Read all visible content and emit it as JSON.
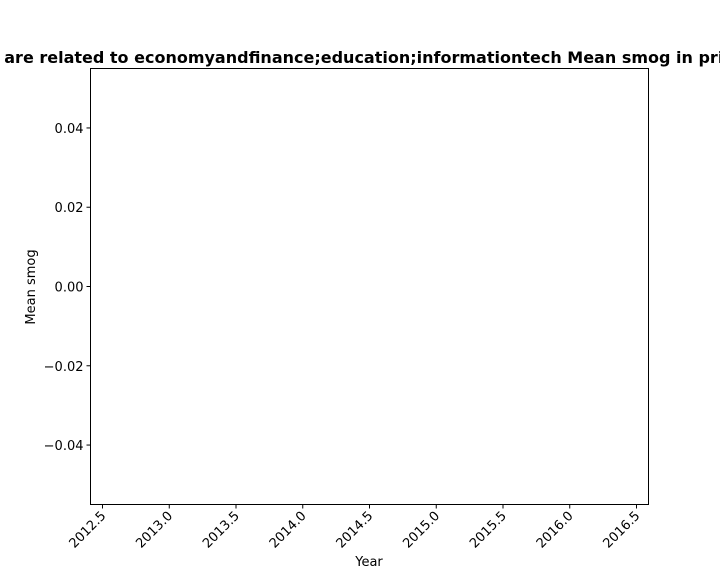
{
  "chart_data": {
    "type": "line",
    "title": "are related to economyandfinance;education;informationtech Mean smog in priv",
    "xlabel": "Year",
    "ylabel": "Mean smog",
    "x_ticks": [
      "2012.5",
      "2013.0",
      "2013.5",
      "2014.0",
      "2014.5",
      "2015.0",
      "2015.5",
      "2016.0",
      "2016.5"
    ],
    "y_ticks": [
      "0.04",
      "0.02",
      "0.00",
      "−0.02",
      "−0.04"
    ],
    "xlim": [
      2012.41,
      2016.59
    ],
    "ylim": [
      -0.055,
      0.055
    ],
    "grid": false,
    "series": []
  }
}
